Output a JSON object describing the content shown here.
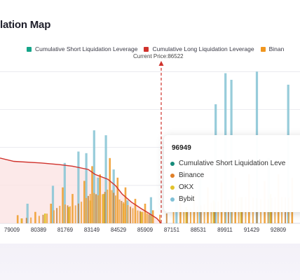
{
  "title": "lation Map",
  "legend": [
    {
      "label": "Cumulative Short Liquidation Leverage",
      "color": "#15a589"
    },
    {
      "label": "Cumulative Long Liquidation Leverage",
      "color": "#d0322c"
    },
    {
      "label": "Binan",
      "color": "#f0961f"
    }
  ],
  "current_price_label": "Current Price:86522",
  "tooltip": {
    "title": "96949",
    "rows": [
      {
        "label": "Cumulative Short Liquidation Leve",
        "color": "#168b7a"
      },
      {
        "label": "Binance",
        "color": "#e07f28"
      },
      {
        "label": "OKX",
        "color": "#e2c22a"
      },
      {
        "label": "Bybit",
        "color": "#7fc0d6"
      }
    ]
  },
  "colors": {
    "binance": "#f0a23a",
    "okx": "#e2c22a",
    "bybit": "#8cc7d6",
    "long_line": "#d0322c",
    "long_area": "#fbe3e3"
  },
  "chart_data": {
    "type": "bar",
    "x_ticks": [
      "79009",
      "80389",
      "81769",
      "83149",
      "84529",
      "85909",
      "87151",
      "88531",
      "89911",
      "91429",
      "92809"
    ],
    "x_range": [
      78300,
      93600
    ],
    "current_price": 86522,
    "series": [
      {
        "name": "Cumulative Long Liquidation Leverage",
        "type": "line",
        "x": [
          78300,
          79009,
          80389,
          81300,
          82000,
          82800,
          83149,
          83800,
          84200,
          84529,
          85000,
          85500,
          85909,
          86300,
          86522
        ],
        "values": [
          0.4,
          0.38,
          0.37,
          0.36,
          0.35,
          0.33,
          0.3,
          0.27,
          0.23,
          0.18,
          0.13,
          0.09,
          0.06,
          0.03,
          0.0
        ]
      },
      {
        "name": "Binance",
        "type": "bar",
        "x": [
          79200,
          80100,
          80900,
          81500,
          82000,
          82600,
          83000,
          83400,
          83900,
          84300,
          84700,
          85200,
          85700,
          86100,
          87500,
          88200,
          88900,
          89600,
          90300,
          91000,
          91800,
          92500,
          93200
        ],
        "values": [
          0.05,
          0.07,
          0.12,
          0.22,
          0.18,
          0.26,
          0.35,
          0.3,
          0.4,
          0.28,
          0.22,
          0.15,
          0.12,
          0.08,
          0.14,
          0.18,
          0.22,
          0.25,
          0.28,
          0.3,
          0.26,
          0.3,
          0.28
        ]
      },
      {
        "name": "OKX",
        "type": "bar",
        "x": [
          79400,
          80600,
          81800,
          82900,
          83600,
          84600,
          85500,
          87800,
          89200,
          90600,
          92100
        ],
        "values": [
          0.03,
          0.06,
          0.1,
          0.14,
          0.18,
          0.12,
          0.07,
          0.1,
          0.14,
          0.16,
          0.18
        ]
      },
      {
        "name": "Bybit",
        "type": "bar",
        "x": [
          79700,
          81000,
          81600,
          82300,
          82700,
          83100,
          83300,
          83700,
          84100,
          84800,
          86000,
          87300,
          88500,
          89300,
          89800,
          90100,
          91400,
          92000,
          93000
        ],
        "values": [
          0.12,
          0.23,
          0.37,
          0.44,
          0.43,
          0.57,
          0.28,
          0.54,
          0.33,
          0.14,
          0.16,
          0.25,
          0.35,
          0.73,
          0.92,
          0.88,
          0.93,
          0.4,
          0.85
        ]
      }
    ],
    "y_range": [
      0,
      1
    ]
  }
}
